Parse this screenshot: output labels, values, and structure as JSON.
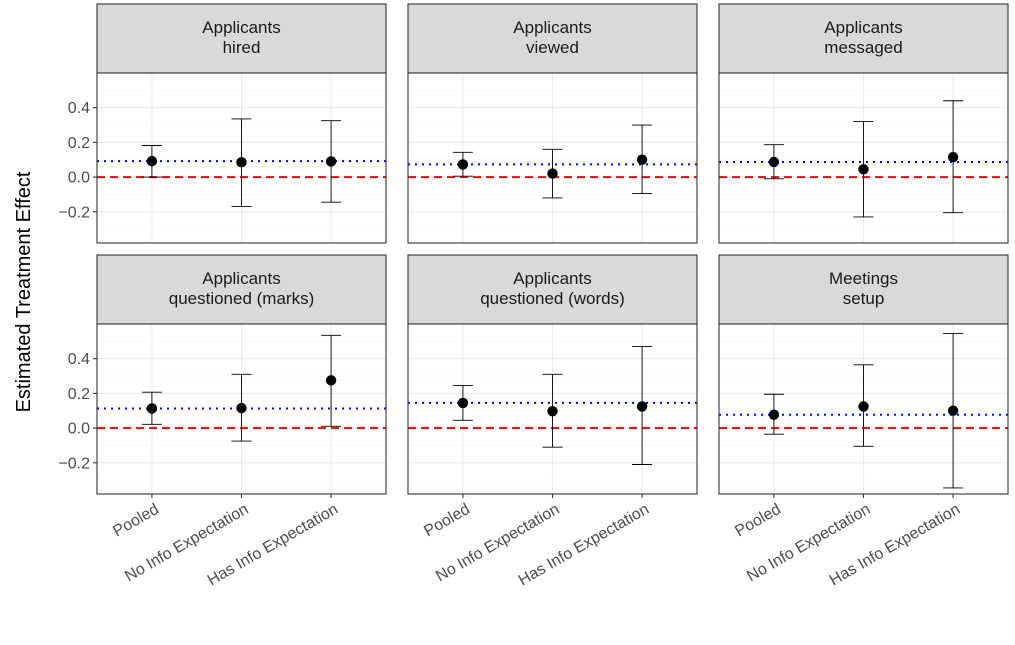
{
  "chart_data": {
    "type": "scatter",
    "subtype": "point-range facets",
    "ylabel": "Estimated Treatment Effect",
    "xlabel": "",
    "ylim": [
      -0.38,
      0.6
    ],
    "yticks": [
      -0.2,
      0.0,
      0.2,
      0.4
    ],
    "ytick_labels": [
      "−0.2",
      "0.0",
      "0.2",
      "0.4"
    ],
    "categories": [
      "Pooled",
      "No Info Expectation",
      "Has Info Expectation"
    ],
    "grid": true,
    "zero_line": {
      "y": 0,
      "color": "#ff0000",
      "style": "dashed"
    },
    "pooled_line": {
      "color": "#0000ff",
      "style": "dotted"
    },
    "point_color": "#000000",
    "facets": [
      {
        "title": [
          "Applicants",
          "hired"
        ],
        "pooled": 0.092,
        "estimates": [
          0.092,
          0.085,
          0.09
        ],
        "lower": [
          0.0,
          -0.17,
          -0.145
        ],
        "upper": [
          0.182,
          0.335,
          0.325
        ]
      },
      {
        "title": [
          "Applicants",
          "viewed"
        ],
        "pooled": 0.073,
        "estimates": [
          0.073,
          0.02,
          0.1
        ],
        "lower": [
          0.005,
          -0.12,
          -0.095
        ],
        "upper": [
          0.143,
          0.16,
          0.3
        ]
      },
      {
        "title": [
          "Applicants",
          "messaged"
        ],
        "pooled": 0.087,
        "estimates": [
          0.087,
          0.045,
          0.115
        ],
        "lower": [
          -0.01,
          -0.23,
          -0.205
        ],
        "upper": [
          0.187,
          0.32,
          0.44
        ]
      },
      {
        "title": [
          "Applicants",
          "questioned (marks)"
        ],
        "pooled": 0.113,
        "estimates": [
          0.113,
          0.115,
          0.275
        ],
        "lower": [
          0.022,
          -0.075,
          0.01
        ],
        "upper": [
          0.207,
          0.31,
          0.535
        ]
      },
      {
        "title": [
          "Applicants",
          "questioned (words)"
        ],
        "pooled": 0.145,
        "estimates": [
          0.145,
          0.097,
          0.125
        ],
        "lower": [
          0.045,
          -0.11,
          -0.21
        ],
        "upper": [
          0.245,
          0.31,
          0.47
        ]
      },
      {
        "title": [
          "Meetings",
          "setup"
        ],
        "pooled": 0.077,
        "estimates": [
          0.077,
          0.125,
          0.1
        ],
        "lower": [
          -0.035,
          -0.105,
          -0.345
        ],
        "upper": [
          0.195,
          0.365,
          0.545
        ]
      }
    ]
  }
}
